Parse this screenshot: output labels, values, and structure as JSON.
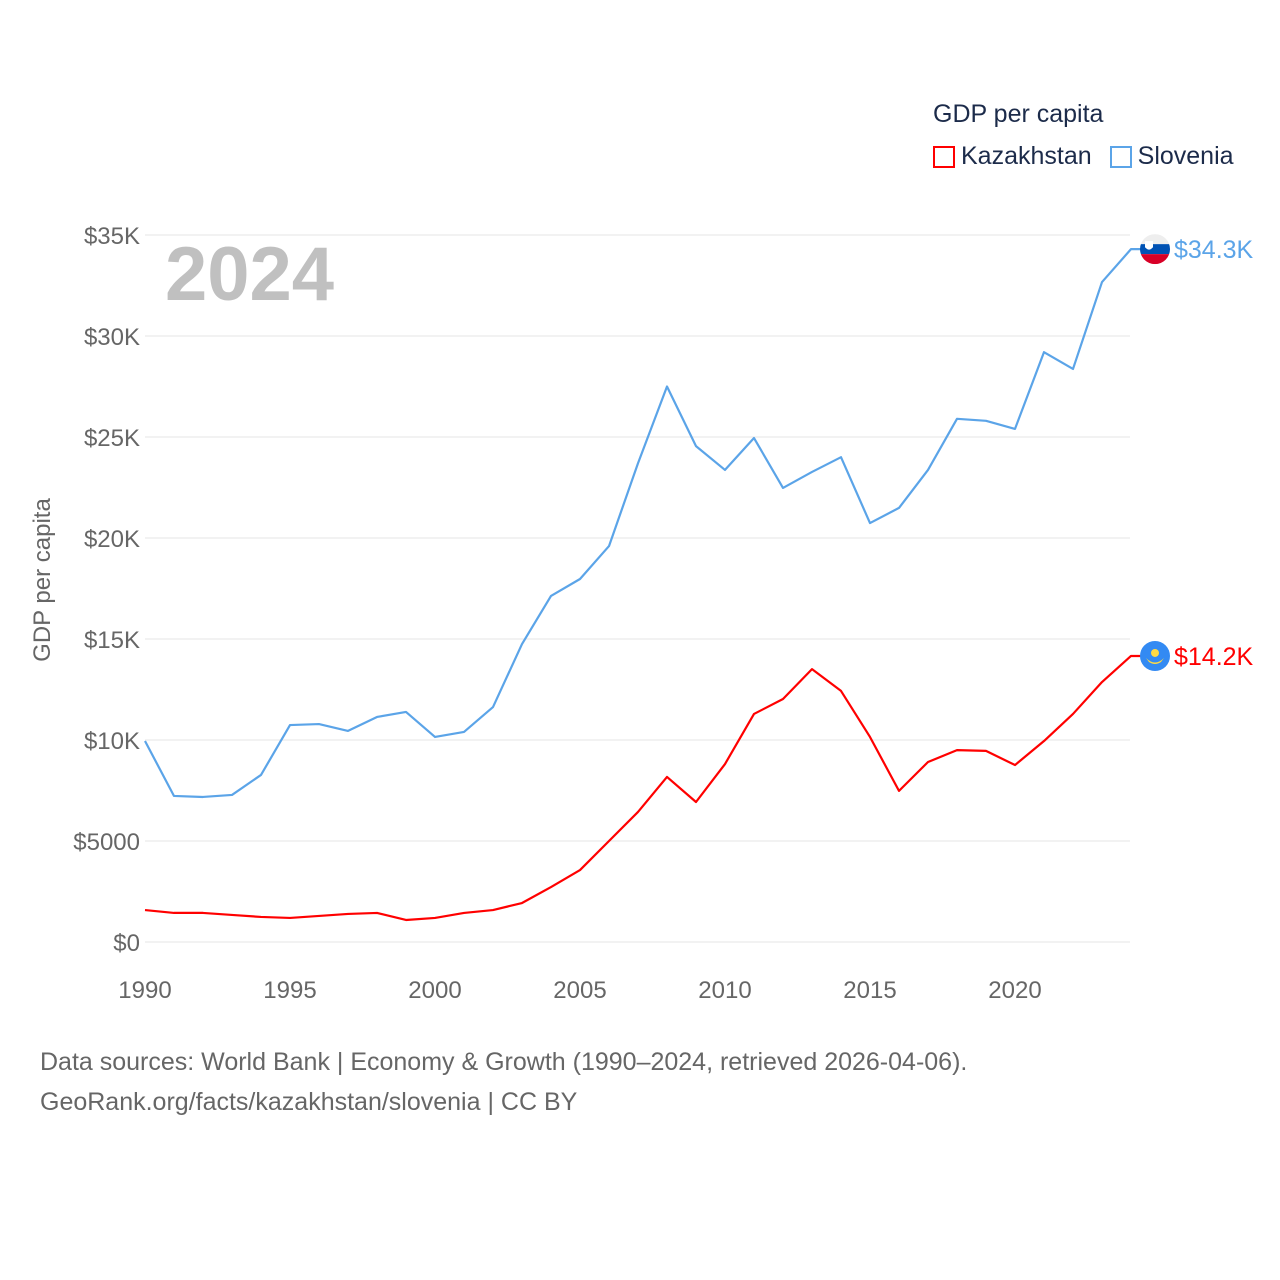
{
  "chart_data": {
    "type": "line",
    "ylabel": "GDP per capita",
    "year_label": "2024",
    "legend_title": "GDP per capita",
    "legend_placement": "top-right",
    "ylim": [
      0,
      35000
    ],
    "xlim": [
      1990,
      2024
    ],
    "y_ticks": [
      {
        "value": 0,
        "label": "$0"
      },
      {
        "value": 5000,
        "label": "$5000"
      },
      {
        "value": 10000,
        "label": "$10K"
      },
      {
        "value": 15000,
        "label": "$15K"
      },
      {
        "value": 20000,
        "label": "$20K"
      },
      {
        "value": 25000,
        "label": "$25K"
      },
      {
        "value": 30000,
        "label": "$30K"
      },
      {
        "value": 35000,
        "label": "$35K"
      }
    ],
    "x_ticks": [
      {
        "value": 1990,
        "label": "1990"
      },
      {
        "value": 1995,
        "label": "1995"
      },
      {
        "value": 2000,
        "label": "2000"
      },
      {
        "value": 2005,
        "label": "2005"
      },
      {
        "value": 2010,
        "label": "2010"
      },
      {
        "value": 2015,
        "label": "2015"
      },
      {
        "value": 2020,
        "label": "2020"
      }
    ],
    "x": [
      1990,
      1991,
      1992,
      1993,
      1994,
      1995,
      1996,
      1997,
      1998,
      1999,
      2000,
      2001,
      2002,
      2003,
      2004,
      2005,
      2006,
      2007,
      2008,
      2009,
      2010,
      2011,
      2012,
      2013,
      2014,
      2015,
      2016,
      2017,
      2018,
      2019,
      2020,
      2021,
      2022,
      2023,
      2024
    ],
    "series": [
      {
        "name": "Kazakhstan",
        "color": "#ff0000",
        "end_label": "$14.2K",
        "flag": "kazakhstan-flag",
        "values": [
          1580,
          1440,
          1440,
          1340,
          1240,
          1190,
          1290,
          1390,
          1440,
          1090,
          1190,
          1440,
          1580,
          1930,
          2720,
          3560,
          5000,
          6440,
          8170,
          6930,
          8810,
          11290,
          12030,
          13510,
          12430,
          10150,
          7480,
          8910,
          9500,
          9460,
          8760,
          9950,
          11290,
          12870,
          14160
        ]
      },
      {
        "name": "Slovenia",
        "color": "#5ba4e8",
        "end_label": "$34.3K",
        "flag": "slovenia-flag",
        "values": [
          9950,
          7230,
          7180,
          7280,
          8270,
          10740,
          10790,
          10450,
          11140,
          11390,
          10150,
          10400,
          11630,
          14750,
          17130,
          17970,
          19600,
          23700,
          27500,
          24550,
          23370,
          24950,
          22480,
          23270,
          24000,
          20740,
          21490,
          23370,
          25900,
          25800,
          25400,
          29200,
          28370,
          32670,
          34300
        ]
      }
    ]
  },
  "footer": {
    "line1": "Data sources: World Bank | Economy & Growth (1990–2024, retrieved 2026-04-06).",
    "line2": "GeoRank.org/facts/kazakhstan/slovenia | CC BY"
  }
}
